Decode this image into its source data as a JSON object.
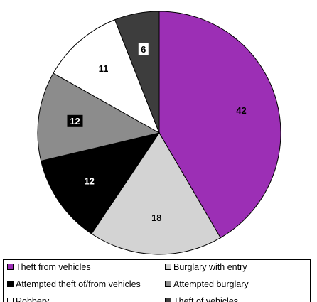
{
  "chart_data": {
    "type": "pie",
    "title": "",
    "start": "12 o'clock",
    "direction": "clockwise",
    "legend_position": "bottom",
    "series": [
      {
        "label": "Theft from vehicles",
        "value": 42,
        "color": "#9c2fb5",
        "text_color": "#000000",
        "label_box": false
      },
      {
        "label": "Burglary with entry",
        "value": 18,
        "color": "#d3d3d3",
        "text_color": "#000000",
        "label_box": false
      },
      {
        "label": "Attempted theft of/from vehicles",
        "value": 12,
        "color": "#000000",
        "text_color": "#ffffff",
        "label_box": false
      },
      {
        "label": "Attempted burglary",
        "value": 12,
        "color": "#8c8c8c",
        "text_color": "#ffffff",
        "label_box": true
      },
      {
        "label": "Robbery",
        "value": 11,
        "color": "#ffffff",
        "text_color": "#000000",
        "label_box": false
      },
      {
        "label": "Theft of vehicles",
        "value": 6,
        "color": "#3d3d3d",
        "text_color": "#000000",
        "label_box": true
      }
    ]
  }
}
